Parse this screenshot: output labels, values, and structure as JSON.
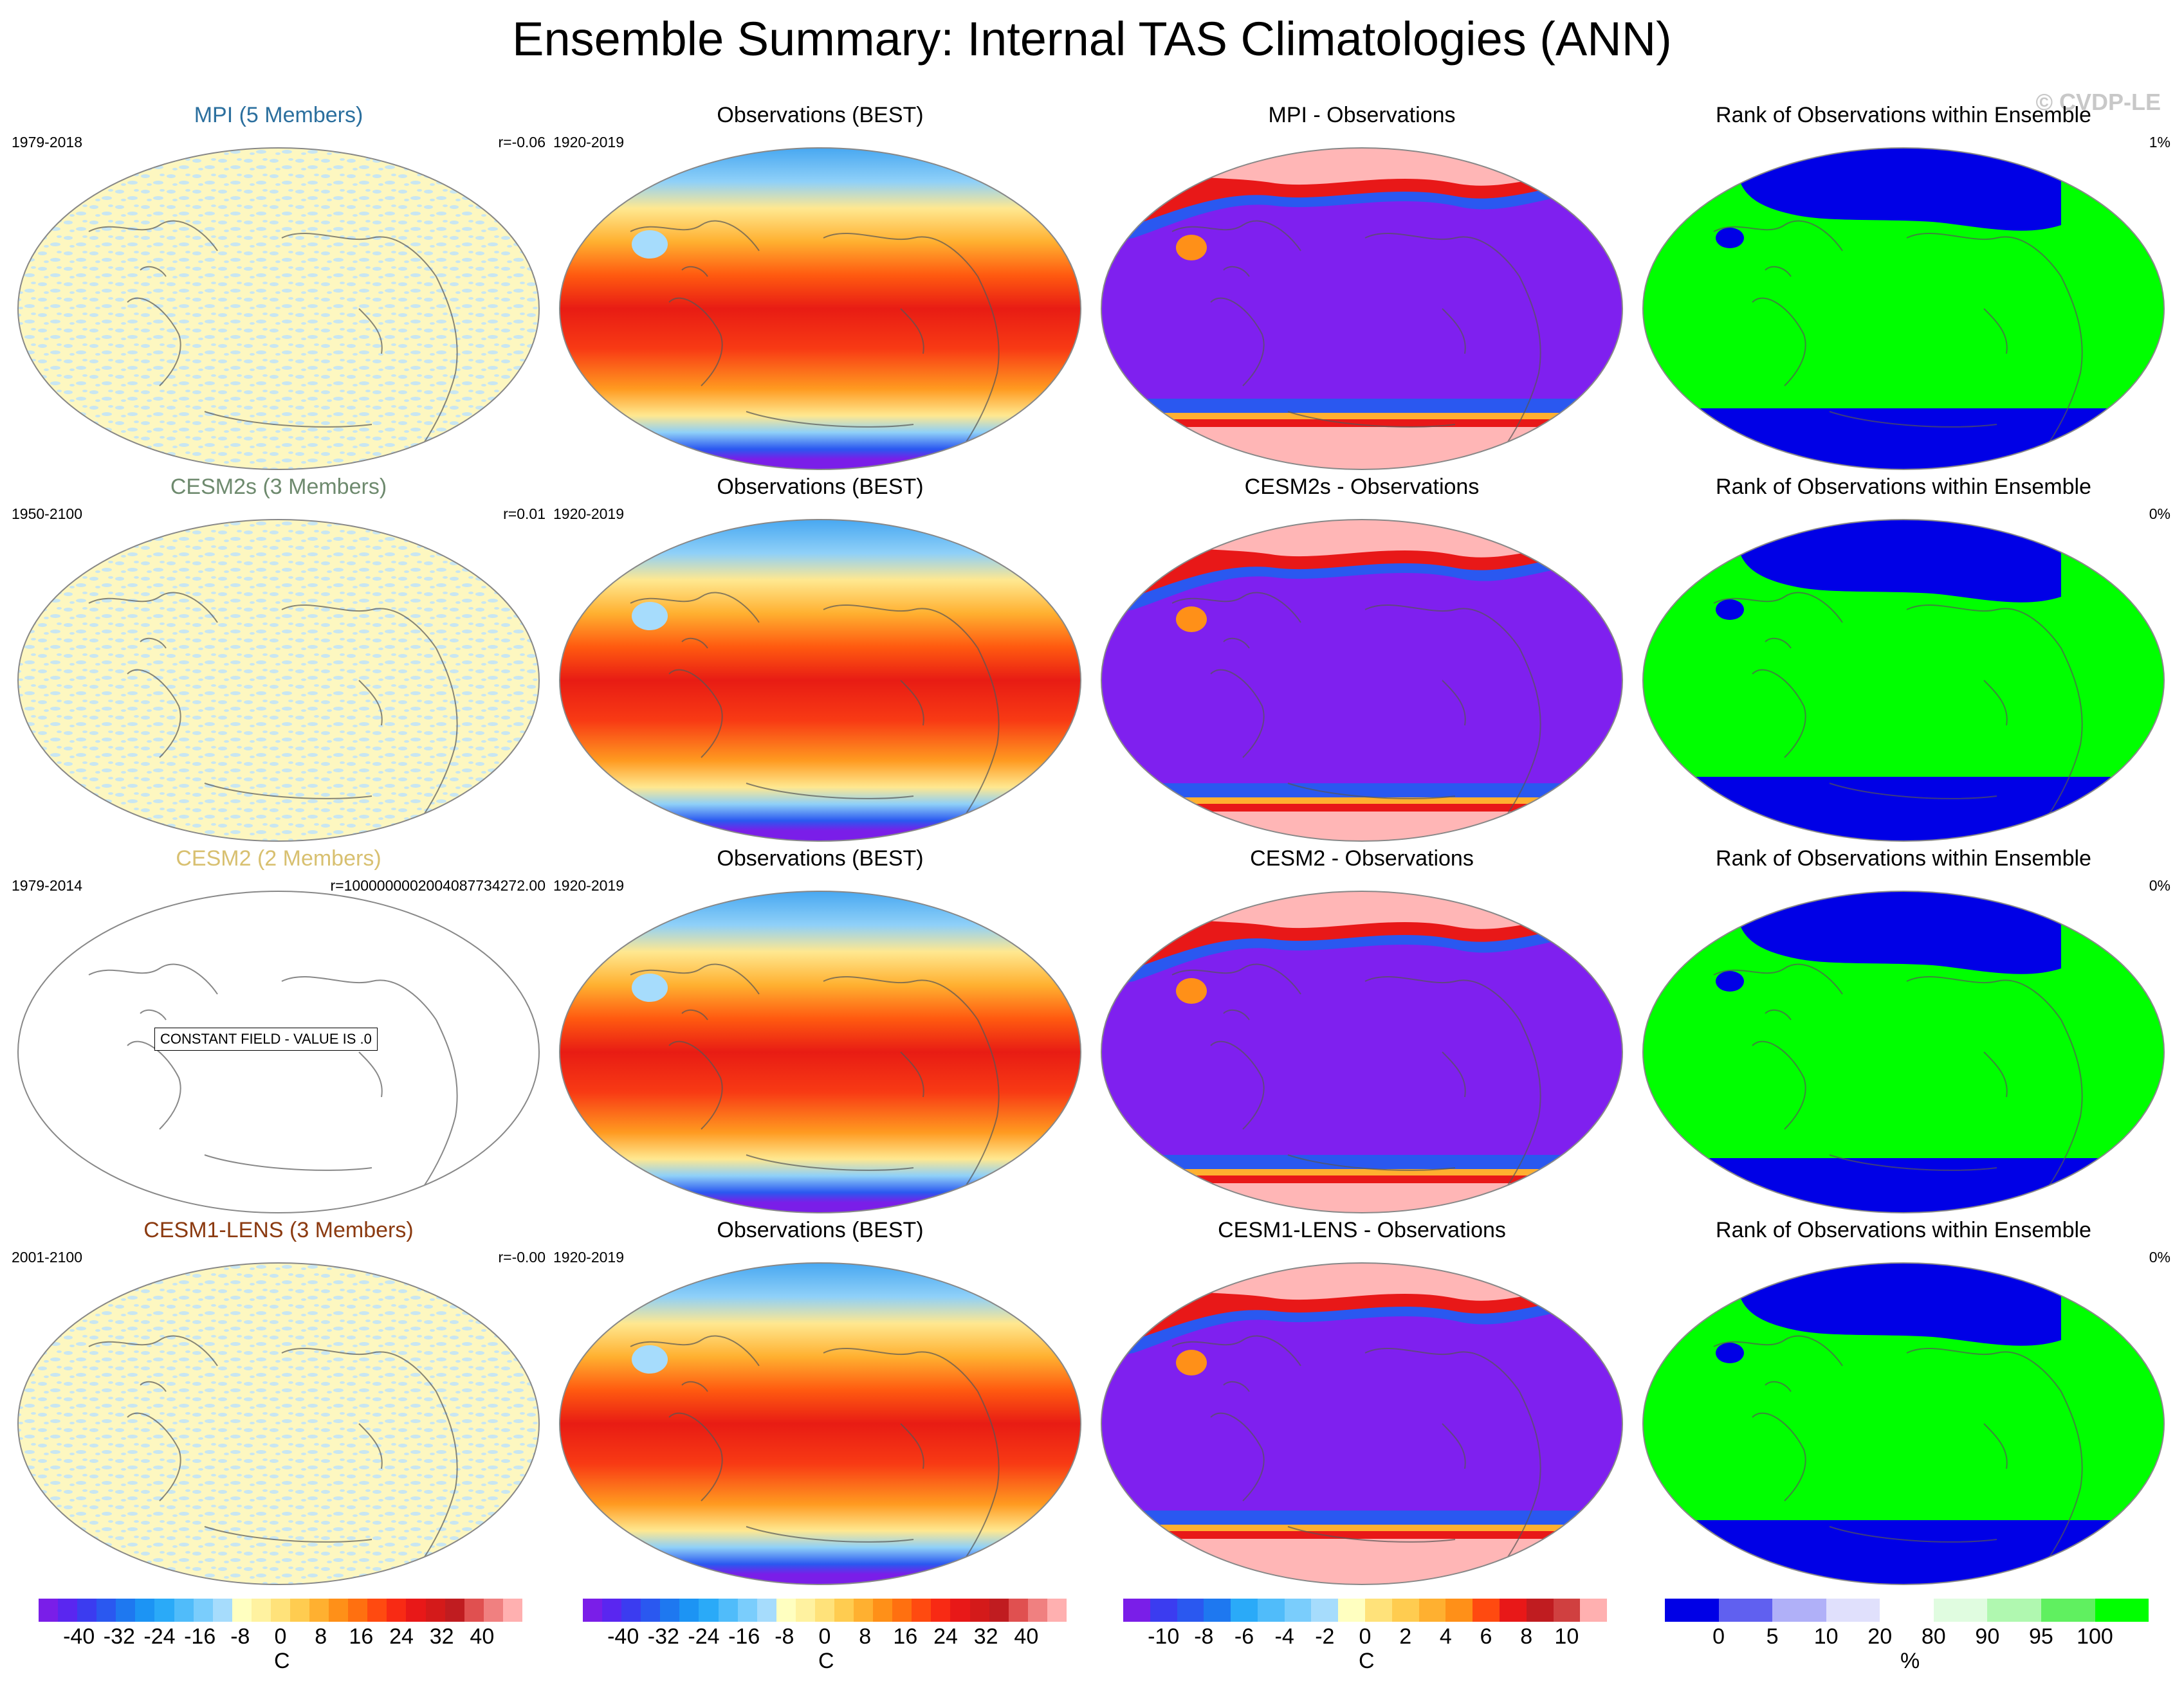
{
  "title": "Ensemble Summary: Internal TAS Climatologies (ANN)",
  "copyright": "© CVDP-LE",
  "colors": {
    "mpi": "#2b6f9e",
    "cesm2s": "#6e8a6e",
    "cesm2": "#d8c070",
    "cesm1": "#8b3a10",
    "rank_green": "#00ff00",
    "rank_blue": "#0000e6",
    "diff_purple": "#7f20ef",
    "diff_pink": "#ffb6b6"
  },
  "rows": [
    {
      "col1": {
        "title": "MPI (5 Members)",
        "period": "1979-2018",
        "r": "r=-0.06"
      },
      "col2": {
        "title": "Observations (BEST)",
        "period": "1920-2019"
      },
      "col3": {
        "title": "MPI - Observations"
      },
      "col4": {
        "title": "Rank of Observations within Ensemble",
        "pct": "1%"
      }
    },
    {
      "col1": {
        "title": "CESM2s (3 Members)",
        "period": "1950-2100",
        "r": "r=0.01"
      },
      "col2": {
        "title": "Observations (BEST)",
        "period": "1920-2019"
      },
      "col3": {
        "title": "CESM2s - Observations"
      },
      "col4": {
        "title": "Rank of Observations within Ensemble",
        "pct": "0%"
      }
    },
    {
      "col1": {
        "title": "CESM2 (2 Members)",
        "period": "1979-2014",
        "r": "r=1000000002004087734272.00",
        "note": "CONSTANT FIELD - VALUE IS .0"
      },
      "col2": {
        "title": "Observations (BEST)",
        "period": "1920-2019"
      },
      "col3": {
        "title": "CESM2 - Observations"
      },
      "col4": {
        "title": "Rank of Observations within Ensemble",
        "pct": "0%"
      }
    },
    {
      "col1": {
        "title": "CESM1-LENS (3 Members)",
        "period": "2001-2100",
        "r": "r=-0.00"
      },
      "col2": {
        "title": "Observations (BEST)",
        "period": "1920-2019"
      },
      "col3": {
        "title": "CESM1-LENS - Observations"
      },
      "col4": {
        "title": "Rank of Observations within Ensemble",
        "pct": "0%"
      }
    }
  ],
  "colorbars": [
    {
      "unit": "C",
      "ticks": [
        "-40",
        "-32",
        "-24",
        "-16",
        "-8",
        "0",
        "8",
        "16",
        "24",
        "32",
        "40"
      ],
      "colors": [
        "#7a1ee8",
        "#5a26f0",
        "#3b3cf0",
        "#2a58f0",
        "#1e78f0",
        "#1c94f4",
        "#2aaaf8",
        "#50bcfa",
        "#7acdfc",
        "#a6dcfc",
        "#ffffc0",
        "#fff2a0",
        "#ffe27a",
        "#ffcc50",
        "#ffb030",
        "#ff9018",
        "#ff7010",
        "#ff4a10",
        "#f82a14",
        "#e81818",
        "#d41a1a",
        "#c01c20",
        "#e05050",
        "#f08080",
        "#ffb0b0"
      ]
    },
    {
      "unit": "C",
      "ticks": [
        "-40",
        "-32",
        "-24",
        "-16",
        "-8",
        "0",
        "8",
        "16",
        "24",
        "32",
        "40"
      ],
      "colors": [
        "#7a1ee8",
        "#5a26f0",
        "#3b3cf0",
        "#2a58f0",
        "#1e78f0",
        "#1c94f4",
        "#2aaaf8",
        "#50bcfa",
        "#7acdfc",
        "#a6dcfc",
        "#ffffc0",
        "#fff2a0",
        "#ffe27a",
        "#ffcc50",
        "#ffb030",
        "#ff9018",
        "#ff7010",
        "#ff4a10",
        "#f82a14",
        "#e81818",
        "#d41a1a",
        "#c01c20",
        "#e05050",
        "#f08080",
        "#ffb0b0"
      ]
    },
    {
      "unit": "C",
      "ticks": [
        "-10",
        "-8",
        "-6",
        "-4",
        "-2",
        "0",
        "2",
        "4",
        "6",
        "8",
        "10"
      ],
      "colors": [
        "#7a1ee8",
        "#3b3cf0",
        "#2a58f0",
        "#1e78f0",
        "#2aaaf8",
        "#50bcfa",
        "#7acdfc",
        "#a6dcfc",
        "#ffffc0",
        "#ffe27a",
        "#ffcc50",
        "#ffb030",
        "#ff9018",
        "#ff4a10",
        "#e81818",
        "#c01c20",
        "#d04040",
        "#ffb0b0"
      ]
    },
    {
      "unit": "%",
      "ticks": [
        "0",
        "5",
        "10",
        "20",
        "80",
        "90",
        "95",
        "100"
      ],
      "colors": [
        "#0000e6",
        "#6060f0",
        "#b0b0f8",
        "#e0e0fc",
        "#ffffff",
        "#e0fce0",
        "#b0f8b0",
        "#60f060",
        "#00ff00"
      ]
    }
  ]
}
